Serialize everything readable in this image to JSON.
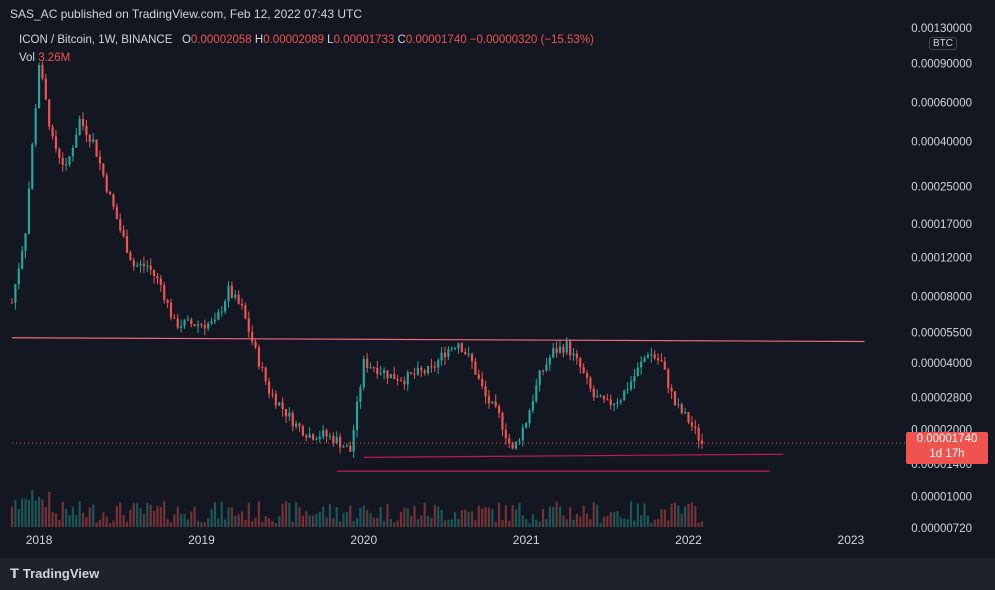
{
  "header": {
    "published": "SAS_AC published on TradingView.com, Feb 12, 2022 07:43 UTC"
  },
  "legend": {
    "symbol": "ICON / Bitcoin, 1W, BINANCE",
    "open_label": "O",
    "open": "0.00002058",
    "high_label": "H",
    "high": "0.00002089",
    "low_label": "L",
    "low": "0.00001733",
    "close_label": "C",
    "close": "0.00001740",
    "change": "−0.00000320 (−15.53%)",
    "vol_label": "Vol",
    "vol": "3.26M"
  },
  "price_axis": {
    "currency": "BTC",
    "current_price": "0.00001740",
    "countdown": "1d 17h"
  },
  "footer": {
    "brand": "TradingView",
    "logo_icon": "tradingview-logo-icon"
  },
  "colors": {
    "up": "#26a69a",
    "down": "#ef5350",
    "background": "#131722",
    "text": "#d1d4dc",
    "trendline": "#f06a75",
    "support": "#c2185b"
  },
  "chart_data": {
    "type": "candlestick",
    "scale": "log",
    "y_ticks": [
      "0.00130000",
      "0.00090000",
      "0.00060000",
      "0.00040000",
      "0.00025000",
      "0.00017000",
      "0.00012000",
      "0.00008000",
      "0.00005500",
      "0.00004000",
      "0.00002800",
      "0.00002000",
      "0.00001400",
      "0.00001000",
      "0.00000720"
    ],
    "x_ticks": [
      "2018",
      "2019",
      "2020",
      "2021",
      "2022",
      "2023"
    ],
    "ylim": [
      7.2e-06,
      0.0013
    ],
    "series": [
      {
        "name": "price",
        "points": [
          [
            "2017-11",
            7.5e-05
          ],
          [
            "2017-12",
            0.00016
          ],
          [
            "2018-01",
            0.0009
          ],
          [
            "2018-02",
            0.0004
          ],
          [
            "2018-03",
            0.0003
          ],
          [
            "2018-04",
            0.0005
          ],
          [
            "2018-05",
            0.0004
          ],
          [
            "2018-06",
            0.00025
          ],
          [
            "2018-07",
            0.00016
          ],
          [
            "2018-08",
            0.00011
          ],
          [
            "2018-09",
            0.00011
          ],
          [
            "2018-10",
            9e-05
          ],
          [
            "2018-11",
            6e-05
          ],
          [
            "2018-12",
            6e-05
          ],
          [
            "2019-01",
            6e-05
          ],
          [
            "2019-02",
            6e-05
          ],
          [
            "2019-03",
            8.5e-05
          ],
          [
            "2019-04",
            7e-05
          ],
          [
            "2019-05",
            4.5e-05
          ],
          [
            "2019-06",
            3e-05
          ],
          [
            "2019-07",
            2.5e-05
          ],
          [
            "2019-08",
            2.1e-05
          ],
          [
            "2019-09",
            1.9e-05
          ],
          [
            "2019-10",
            1.9e-05
          ],
          [
            "2019-11",
            1.8e-05
          ],
          [
            "2019-12",
            1.6e-05
          ],
          [
            "2020-01",
            4e-05
          ],
          [
            "2020-02",
            3.8e-05
          ],
          [
            "2020-03",
            3.5e-05
          ],
          [
            "2020-04",
            3.4e-05
          ],
          [
            "2020-05",
            3.6e-05
          ],
          [
            "2020-06",
            3.7e-05
          ],
          [
            "2020-07",
            4.5e-05
          ],
          [
            "2020-08",
            5e-05
          ],
          [
            "2020-09",
            4e-05
          ],
          [
            "2020-10",
            2.8e-05
          ],
          [
            "2020-11",
            2.3e-05
          ],
          [
            "2020-12",
            1.6e-05
          ],
          [
            "2021-01",
            2.2e-05
          ],
          [
            "2021-02",
            3.5e-05
          ],
          [
            "2021-03",
            4.5e-05
          ],
          [
            "2021-04",
            4.8e-05
          ],
          [
            "2021-05",
            3.8e-05
          ],
          [
            "2021-06",
            2.8e-05
          ],
          [
            "2021-07",
            2.6e-05
          ],
          [
            "2021-08",
            2.8e-05
          ],
          [
            "2021-09",
            3.5e-05
          ],
          [
            "2021-10",
            4.5e-05
          ],
          [
            "2021-11",
            4e-05
          ],
          [
            "2021-12",
            2.6e-05
          ],
          [
            "2022-01",
            2.2e-05
          ],
          [
            "2022-02",
            1.74e-05
          ]
        ]
      }
    ],
    "annotations": [
      {
        "type": "trendline",
        "from": [
          "2017-11",
          5.2e-05
        ],
        "to": [
          "2023-02",
          5e-05
        ]
      },
      {
        "type": "horizontal_segment",
        "from": [
          "2020-01",
          1.5e-05
        ],
        "to": [
          "2022-08",
          1.55e-05
        ]
      },
      {
        "type": "horizontal_segment",
        "from": [
          "2019-11",
          1.3e-05
        ],
        "to": [
          "2022-07",
          1.3e-05
        ]
      }
    ]
  }
}
